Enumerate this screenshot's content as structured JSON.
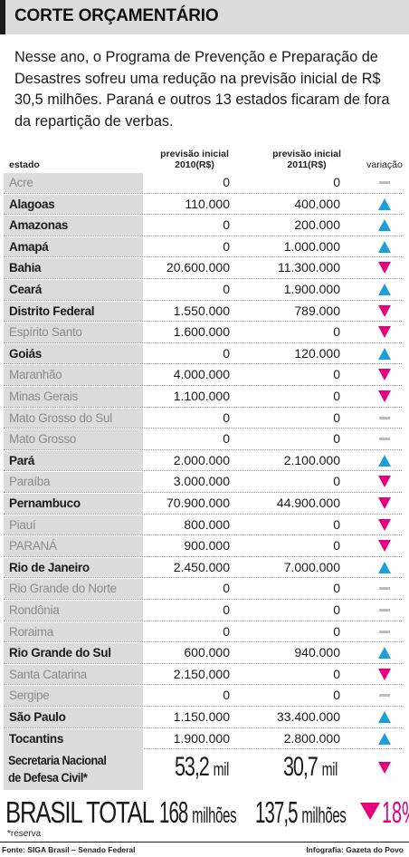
{
  "header": {
    "title": "CORTE ORÇAMENTÁRIO"
  },
  "intro": "Nesse ano, o Programa de Prevenção e Preparação de Desastres sofreu uma redução na previsão inicial de R$ 30,5 milhões. Paraná e outros 13 estados ficaram de fora da repartição de verbas.",
  "columns": {
    "estado": "estado",
    "prev2010": [
      "previsão inicial",
      "2010(R$)"
    ],
    "prev2011": [
      "previsão inicial",
      "2011(R$)"
    ],
    "variacao": "variação"
  },
  "colors": {
    "up": "#1e9fd8",
    "down": "#e6007e",
    "flat": "#bdbdbd",
    "shade": "#dcdcdc"
  },
  "chart_data": {
    "type": "table",
    "title": "CORTE ORÇAMENTÁRIO",
    "columns": [
      "estado",
      "previsão inicial 2010(R$)",
      "previsão inicial 2011(R$)",
      "variação"
    ],
    "rows": [
      {
        "estado": "Acre",
        "v2010": "0",
        "v2011": "0",
        "variacao": "flat",
        "muted": true
      },
      {
        "estado": "Alagoas",
        "v2010": "110.000",
        "v2011": "400.000",
        "variacao": "up",
        "muted": false
      },
      {
        "estado": "Amazonas",
        "v2010": "0",
        "v2011": "200.000",
        "variacao": "up",
        "muted": false
      },
      {
        "estado": "Amapá",
        "v2010": "0",
        "v2011": "1.000.000",
        "variacao": "up",
        "muted": false
      },
      {
        "estado": "Bahia",
        "v2010": "20.600.000",
        "v2011": "11.300.000",
        "variacao": "down",
        "muted": false
      },
      {
        "estado": "Ceará",
        "v2010": "0",
        "v2011": "1.900.000",
        "variacao": "up",
        "muted": false
      },
      {
        "estado": "Distrito Federal",
        "v2010": "1.550.000",
        "v2011": "789.000",
        "variacao": "down",
        "muted": false
      },
      {
        "estado": "Espírito Santo",
        "v2010": "1.600.000",
        "v2011": "0",
        "variacao": "down",
        "muted": true
      },
      {
        "estado": "Goiás",
        "v2010": "0",
        "v2011": "120.000",
        "variacao": "up",
        "muted": false
      },
      {
        "estado": "Maranhão",
        "v2010": "4.000.000",
        "v2011": "0",
        "variacao": "down",
        "muted": true
      },
      {
        "estado": "Minas Gerais",
        "v2010": "1.100.000",
        "v2011": "0",
        "variacao": "down",
        "muted": true
      },
      {
        "estado": "Mato Grosso do Sul",
        "v2010": "0",
        "v2011": "0",
        "variacao": "flat",
        "muted": true
      },
      {
        "estado": "Mato Grosso",
        "v2010": "0",
        "v2011": "0",
        "variacao": "flat",
        "muted": true
      },
      {
        "estado": "Pará",
        "v2010": "2.000.000",
        "v2011": "2.100.000",
        "variacao": "up",
        "muted": false
      },
      {
        "estado": "Paraíba",
        "v2010": "3.000.000",
        "v2011": "0",
        "variacao": "down",
        "muted": true
      },
      {
        "estado": "Pernambuco",
        "v2010": "70.900.000",
        "v2011": "44.900.000",
        "variacao": "down",
        "muted": false
      },
      {
        "estado": "Piauí",
        "v2010": "800.000",
        "v2011": "0",
        "variacao": "down",
        "muted": true
      },
      {
        "estado": "PARANÁ",
        "v2010": "900.000",
        "v2011": "0",
        "variacao": "down",
        "muted": true
      },
      {
        "estado": "Rio de Janeiro",
        "v2010": "2.450.000",
        "v2011": "7.000.000",
        "variacao": "up",
        "muted": false
      },
      {
        "estado": "Rio Grande do Norte",
        "v2010": "0",
        "v2011": "0",
        "variacao": "flat",
        "muted": true
      },
      {
        "estado": "Rondônia",
        "v2010": "0",
        "v2011": "0",
        "variacao": "flat",
        "muted": true
      },
      {
        "estado": "Roraima",
        "v2010": "0",
        "v2011": "0",
        "variacao": "flat",
        "muted": true
      },
      {
        "estado": "Rio Grande do Sul",
        "v2010": "600.000",
        "v2011": "940.000",
        "variacao": "up",
        "muted": false
      },
      {
        "estado": "Santa Catarina",
        "v2010": "2.150.000",
        "v2011": "0",
        "variacao": "down",
        "muted": true
      },
      {
        "estado": "Sergipe",
        "v2010": "0",
        "v2011": "0",
        "variacao": "flat",
        "muted": true
      },
      {
        "estado": "São Paulo",
        "v2010": "1.150.000",
        "v2011": "33.400.000",
        "variacao": "up",
        "muted": false
      },
      {
        "estado": "Tocantins",
        "v2010": "1.900.000",
        "v2011": "2.800.000",
        "variacao": "up",
        "muted": false
      }
    ],
    "secretaria": {
      "label": [
        "Secretaria Nacional",
        "de Defesa Civil*"
      ],
      "v2010": "53,2",
      "v2010_unit": "mil",
      "v2011": "30,7",
      "v2011_unit": "mil",
      "variacao": "down"
    },
    "total": {
      "label": "BRASIL TOTAL",
      "v2010": "168",
      "v2010_unit": "milhões",
      "v2011": "137,5",
      "v2011_unit": "milhões",
      "variacao": "down",
      "pct": "18%"
    }
  },
  "footer": {
    "note": "*reserva",
    "source": "Fonte: SIGA Brasil – Senado Federal",
    "credit": "Infografia: Gazeta do Povo"
  }
}
